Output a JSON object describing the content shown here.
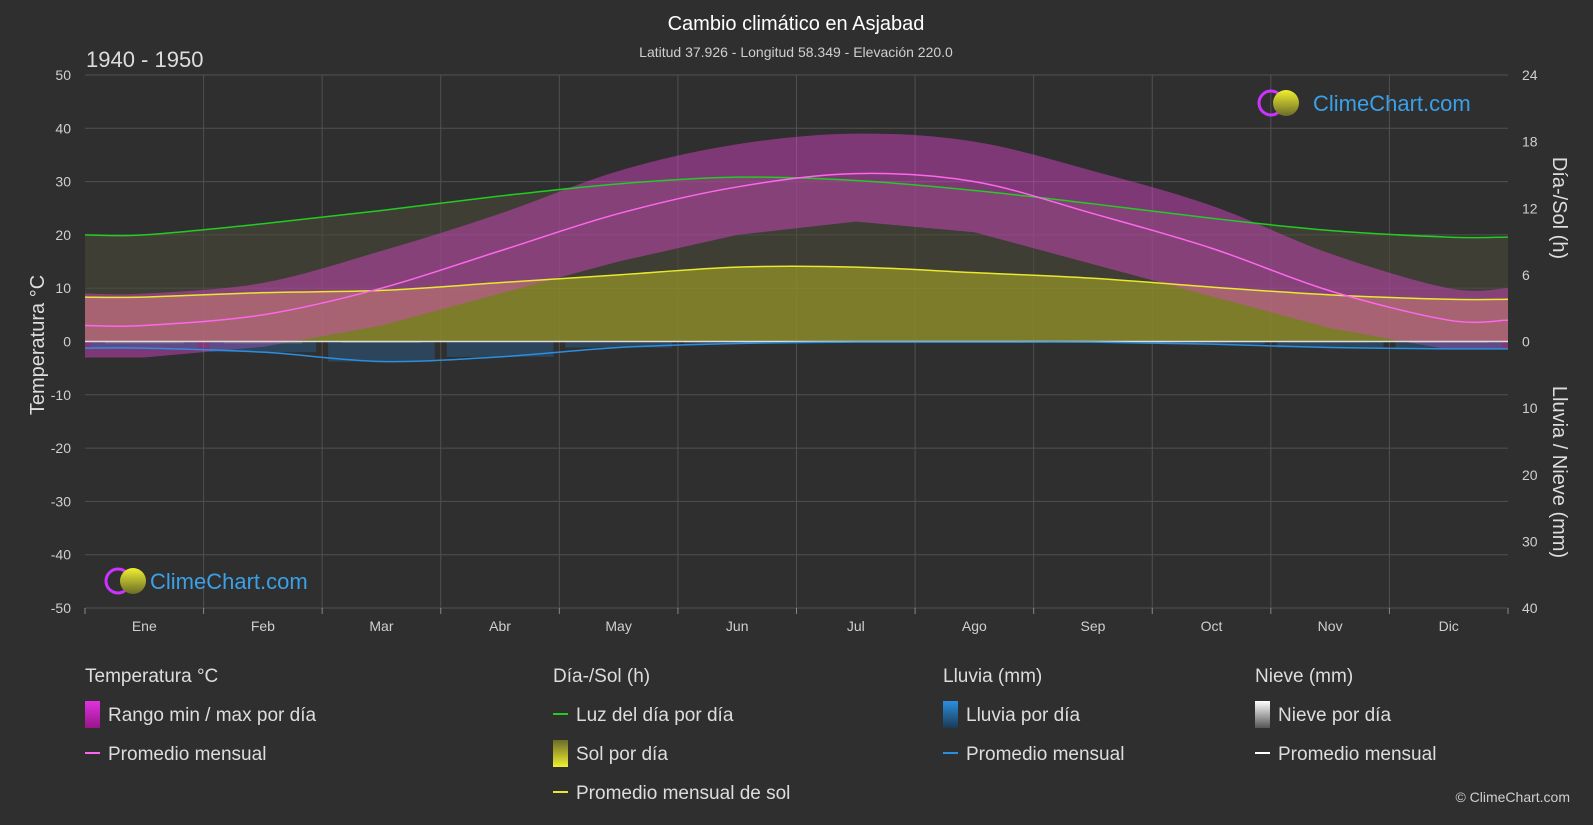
{
  "header": {
    "title": "Cambio climático en Asjabad",
    "subtitle": "Latitud 37.926 - Longitud 58.349 - Elevación 220.0",
    "period": "1940 - 1950"
  },
  "axes": {
    "left_label": "Temperatura °C",
    "right_top_label": "Día-/Sol (h)",
    "right_bottom_label": "Lluvia / Nieve (mm)"
  },
  "brand": {
    "logo_text": "ClimeChart.com",
    "copyright": "© ClimeChart.com"
  },
  "legend": {
    "groups": [
      {
        "title": "Temperatura °C",
        "items": [
          {
            "label": "Rango min / max por día",
            "kind": "swatch-temp"
          },
          {
            "label": "Promedio mensual",
            "kind": "line",
            "color": "#ff66ee"
          }
        ]
      },
      {
        "title": "Día-/Sol (h)",
        "items": [
          {
            "label": "Luz del día por día",
            "kind": "line",
            "color": "#22cc22"
          },
          {
            "label": "Sol por día",
            "kind": "swatch-sun"
          },
          {
            "label": "Promedio mensual de sol",
            "kind": "line",
            "color": "#e8e830"
          }
        ]
      },
      {
        "title": "Lluvia (mm)",
        "items": [
          {
            "label": "Lluvia por día",
            "kind": "swatch-rain"
          },
          {
            "label": "Promedio mensual",
            "kind": "line",
            "color": "#2b8fe0"
          }
        ]
      },
      {
        "title": "Nieve (mm)",
        "items": [
          {
            "label": "Nieve por día",
            "kind": "swatch-snow"
          },
          {
            "label": "Promedio mensual",
            "kind": "line",
            "color": "#ffffff"
          }
        ]
      }
    ]
  },
  "chart_data": {
    "type": "area",
    "categories": [
      "Ene",
      "Feb",
      "Mar",
      "Abr",
      "May",
      "Jun",
      "Jul",
      "Ago",
      "Sep",
      "Oct",
      "Nov",
      "Dic"
    ],
    "y_left": {
      "label": "Temperatura °C",
      "ticks": [
        50,
        40,
        30,
        20,
        10,
        0,
        -10,
        -20,
        -30,
        -40,
        -50
      ],
      "range": [
        -50,
        50
      ]
    },
    "y_right_top": {
      "label": "Día-/Sol (h)",
      "ticks": [
        24,
        18,
        12,
        6,
        0
      ],
      "range": [
        0,
        24
      ]
    },
    "y_right_bottom": {
      "label": "Lluvia / Nieve (mm)",
      "ticks": [
        0,
        10,
        20,
        30,
        40
      ],
      "range": [
        0,
        40
      ]
    },
    "grid": true,
    "series": [
      {
        "name": "Promedio mensual",
        "unit": "°C",
        "color": "#ff66ee",
        "values": [
          3,
          5,
          10,
          17,
          24,
          29,
          31.5,
          30,
          24,
          17.5,
          9.5,
          4
        ]
      },
      {
        "name": "Rango min / max por día (min)",
        "unit": "°C",
        "values": [
          -3,
          -1,
          3,
          9,
          15,
          20,
          22.5,
          20.5,
          14.5,
          8.5,
          2.5,
          -1.5
        ]
      },
      {
        "name": "Rango min / max por día (max)",
        "unit": "°C",
        "values": [
          9,
          11,
          17,
          24,
          32,
          37,
          39,
          37.5,
          32,
          25.5,
          16.5,
          10
        ]
      },
      {
        "name": "Luz del día por día",
        "unit": "h",
        "color": "#22cc22",
        "values": [
          9.6,
          10.6,
          11.8,
          13.1,
          14.2,
          14.8,
          14.5,
          13.6,
          12.4,
          11.1,
          10.0,
          9.4
        ]
      },
      {
        "name": "Promedio mensual de sol",
        "unit": "h",
        "color": "#e8e830",
        "values": [
          4.0,
          4.4,
          4.6,
          5.3,
          6.0,
          6.7,
          6.7,
          6.2,
          5.7,
          4.9,
          4.2,
          3.8
        ]
      },
      {
        "name": "Lluvia por día",
        "unit": "mm",
        "color": "#2b8fe0",
        "values": [
          1.0,
          1.6,
          3.0,
          2.3,
          0.9,
          0.3,
          0.1,
          0.1,
          0.1,
          0.4,
          0.9,
          1.1
        ]
      },
      {
        "name": "Nieve por día",
        "unit": "mm",
        "color": "#ffffff",
        "values": [
          0.3,
          0.3,
          0.2,
          0.0,
          0.0,
          0.0,
          0.0,
          0.0,
          0.0,
          0.0,
          0.1,
          0.2
        ]
      }
    ]
  }
}
